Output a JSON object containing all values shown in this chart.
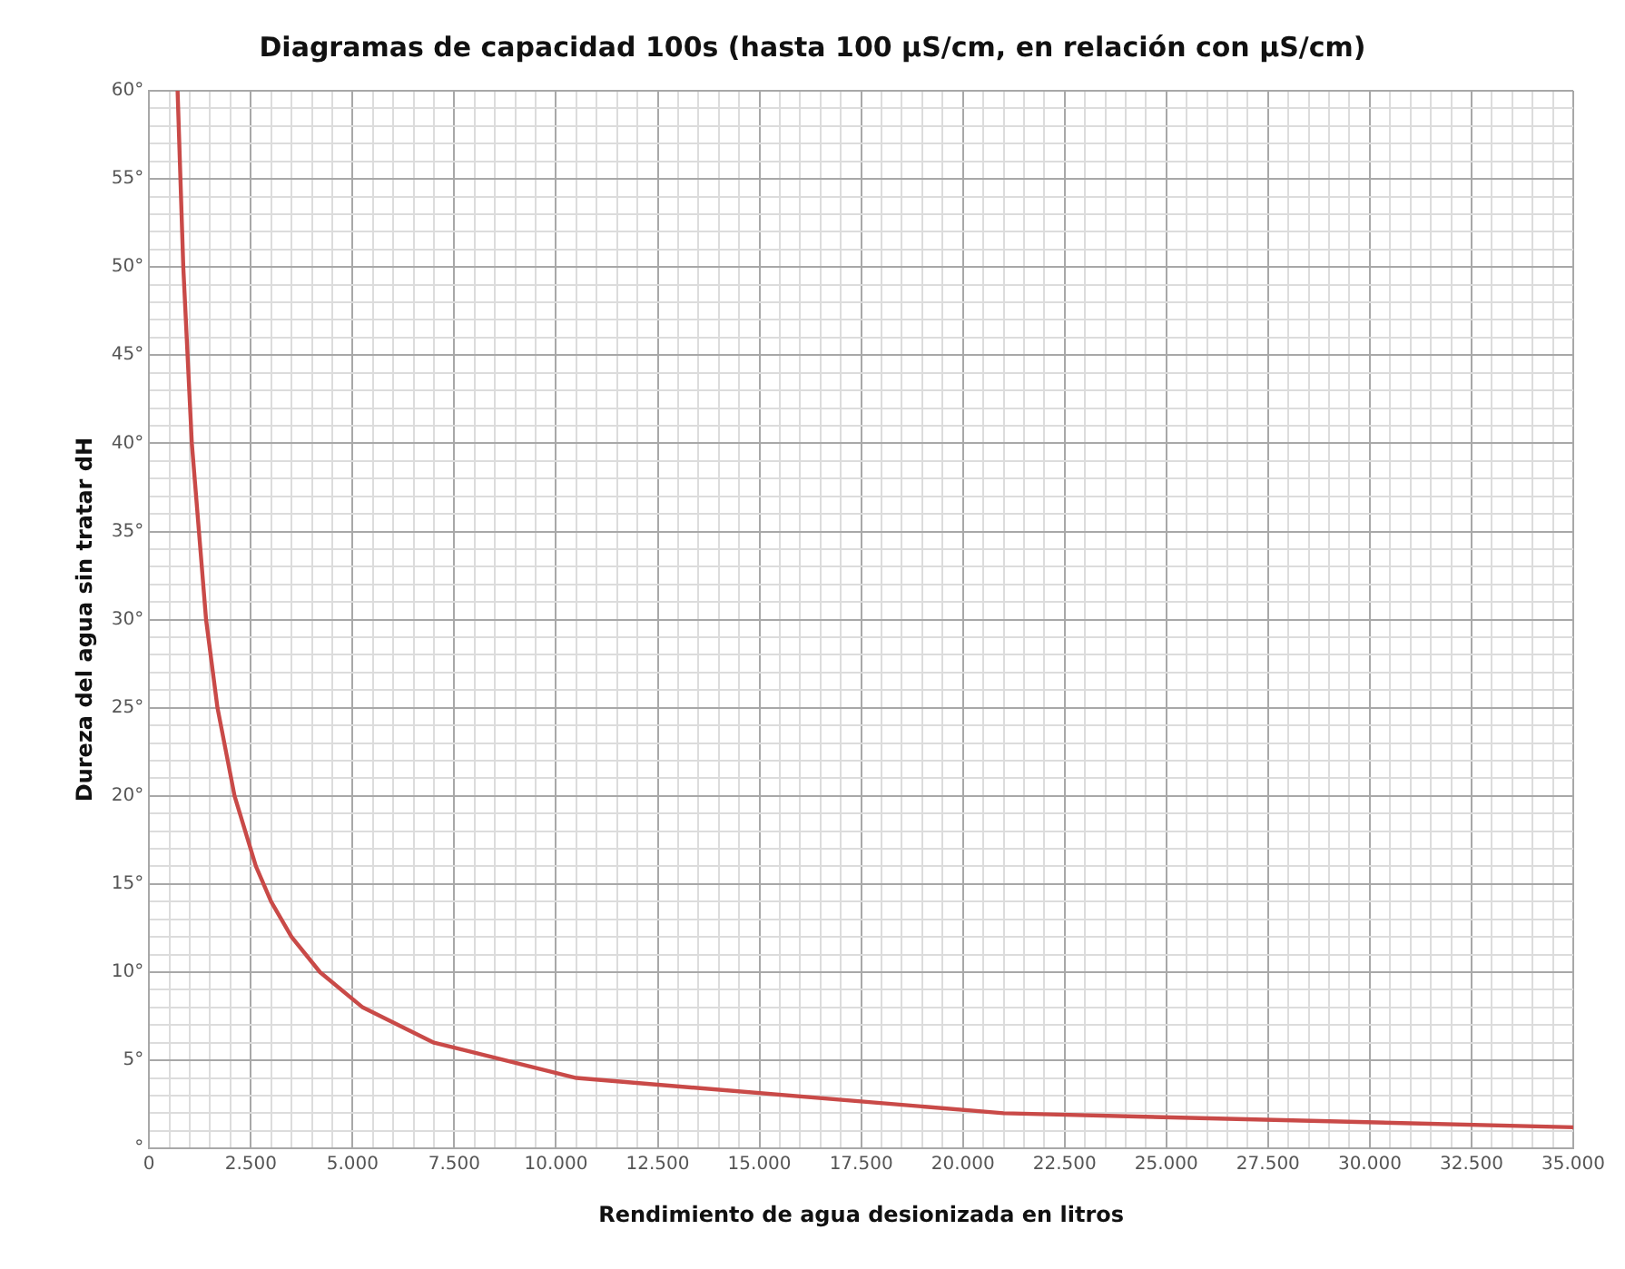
{
  "chart_data": {
    "type": "line",
    "title": "Diagramas de capacidad 100s (hasta 100 µS/cm, en relación con µS/cm)",
    "xlabel": "Rendimiento de agua desionizada en litros",
    "ylabel": "Dureza del agua sin tratar dH",
    "x": [
      700,
      840,
      1050,
      1400,
      1680,
      2100,
      2625,
      3000,
      3500,
      4200,
      5250,
      7000,
      10500,
      21000,
      35000
    ],
    "series": [
      {
        "color": "#c94a48",
        "values": [
          60,
          50,
          40,
          30,
          25,
          20,
          16,
          14,
          12,
          10,
          8,
          6,
          4,
          2,
          1.2
        ]
      }
    ],
    "xlim": [
      0,
      35000
    ],
    "xticks": [
      0,
      {
        "value": 500,
        "label": null
      },
      {
        "value": 1000,
        "label": null
      },
      {
        "value": 1500,
        "label": null
      },
      {
        "value": 2000,
        "label": null
      },
      {
        "value": 2500,
        "label": "2.500"
      },
      {
        "value": 3000,
        "label": null
      },
      {
        "value": 3500,
        "label": null
      },
      {
        "value": 4000,
        "label": null
      },
      {
        "value": 4500,
        "label": null
      },
      {
        "value": 5000,
        "label": "5.000"
      },
      {
        "value": 5500,
        "label": null
      },
      {
        "value": 6000,
        "label": null
      },
      {
        "value": 6500,
        "label": null
      },
      {
        "value": 7000,
        "label": null
      },
      {
        "value": 7500,
        "label": "7.500"
      },
      {
        "value": 8000,
        "label": null
      },
      {
        "value": 8500,
        "label": null
      },
      {
        "value": 9000,
        "label": null
      },
      {
        "value": 9500,
        "label": null
      },
      {
        "value": 10000,
        "label": "10.000"
      },
      {
        "value": 10500,
        "label": null
      },
      {
        "value": 11000,
        "label": null
      },
      {
        "value": 11500,
        "label": null
      },
      {
        "value": 12000,
        "label": null
      },
      {
        "value": 12500,
        "label": "12.500"
      },
      {
        "value": 13000,
        "label": null
      },
      {
        "value": 13500,
        "label": null
      },
      {
        "value": 14000,
        "label": null
      },
      {
        "value": 14500,
        "label": null
      },
      {
        "value": 15000,
        "label": "15.000"
      },
      {
        "value": 15500,
        "label": null
      },
      {
        "value": 16000,
        "label": null
      },
      {
        "value": 16500,
        "label": null
      },
      {
        "value": 17000,
        "label": null
      },
      {
        "value": 17500,
        "label": "17.500"
      },
      {
        "value": 18000,
        "label": null
      },
      {
        "value": 18500,
        "label": null
      },
      {
        "value": 19000,
        "label": null
      },
      {
        "value": 19500,
        "label": null
      },
      {
        "value": 20000,
        "label": "20.000"
      },
      {
        "value": 20500,
        "label": null
      },
      {
        "value": 21000,
        "label": null
      },
      {
        "value": 21500,
        "label": null
      },
      {
        "value": 22000,
        "label": null
      },
      {
        "value": 22500,
        "label": "22.500"
      },
      {
        "value": 23000,
        "label": null
      },
      {
        "value": 23500,
        "label": null
      },
      {
        "value": 24000,
        "label": null
      },
      {
        "value": 24500,
        "label": null
      },
      {
        "value": 25000,
        "label": "25.000"
      },
      {
        "value": 25500,
        "label": null
      },
      {
        "value": 26000,
        "label": null
      },
      {
        "value": 26500,
        "label": null
      },
      {
        "value": 27000,
        "label": null
      },
      {
        "value": 27500,
        "label": "27.500"
      },
      {
        "value": 28000,
        "label": null
      },
      {
        "value": 28500,
        "label": null
      },
      {
        "value": 29000,
        "label": null
      },
      {
        "value": 29500,
        "label": null
      },
      {
        "value": 30000,
        "label": "30.000"
      },
      {
        "value": 30500,
        "label": null
      },
      {
        "value": 31000,
        "label": null
      },
      {
        "value": 31500,
        "label": null
      },
      {
        "value": 32000,
        "label": null
      },
      {
        "value": 32500,
        "label": "32.500"
      },
      {
        "value": 33000,
        "label": null
      },
      {
        "value": 33500,
        "label": null
      },
      {
        "value": 34000,
        "label": null
      },
      {
        "value": 34500,
        "label": null
      },
      {
        "value": 35000,
        "label": "35.000"
      }
    ],
    "ylim": [
      0,
      60
    ],
    "yticks": [
      {
        "value": 0,
        "label": "°"
      },
      {
        "value": 1,
        "label": null
      },
      {
        "value": 2,
        "label": null
      },
      {
        "value": 3,
        "label": null
      },
      {
        "value": 4,
        "label": null
      },
      {
        "value": 5,
        "label": "5°"
      },
      {
        "value": 6,
        "label": null
      },
      {
        "value": 7,
        "label": null
      },
      {
        "value": 8,
        "label": null
      },
      {
        "value": 9,
        "label": null
      },
      {
        "value": 10,
        "label": "10°"
      },
      {
        "value": 11,
        "label": null
      },
      {
        "value": 12,
        "label": null
      },
      {
        "value": 13,
        "label": null
      },
      {
        "value": 14,
        "label": null
      },
      {
        "value": 15,
        "label": "15°"
      },
      {
        "value": 16,
        "label": null
      },
      {
        "value": 17,
        "label": null
      },
      {
        "value": 18,
        "label": null
      },
      {
        "value": 19,
        "label": null
      },
      {
        "value": 20,
        "label": "20°"
      },
      {
        "value": 21,
        "label": null
      },
      {
        "value": 22,
        "label": null
      },
      {
        "value": 23,
        "label": null
      },
      {
        "value": 24,
        "label": null
      },
      {
        "value": 25,
        "label": "25°"
      },
      {
        "value": 26,
        "label": null
      },
      {
        "value": 27,
        "label": null
      },
      {
        "value": 28,
        "label": null
      },
      {
        "value": 29,
        "label": null
      },
      {
        "value": 30,
        "label": "30°"
      },
      {
        "value": 31,
        "label": null
      },
      {
        "value": 32,
        "label": null
      },
      {
        "value": 33,
        "label": null
      },
      {
        "value": 34,
        "label": null
      },
      {
        "value": 35,
        "label": "35°"
      },
      {
        "value": 36,
        "label": null
      },
      {
        "value": 37,
        "label": null
      },
      {
        "value": 38,
        "label": null
      },
      {
        "value": 39,
        "label": null
      },
      {
        "value": 40,
        "label": "40°"
      },
      {
        "value": 41,
        "label": null
      },
      {
        "value": 42,
        "label": null
      },
      {
        "value": 43,
        "label": null
      },
      {
        "value": 44,
        "label": null
      },
      {
        "value": 45,
        "label": "45°"
      },
      {
        "value": 46,
        "label": null
      },
      {
        "value": 47,
        "label": null
      },
      {
        "value": 48,
        "label": null
      },
      {
        "value": 49,
        "label": null
      },
      {
        "value": 50,
        "label": "50°"
      },
      {
        "value": 51,
        "label": null
      },
      {
        "value": 52,
        "label": null
      },
      {
        "value": 53,
        "label": null
      },
      {
        "value": 54,
        "label": null
      },
      {
        "value": 55,
        "label": "55°"
      },
      {
        "value": 56,
        "label": null
      },
      {
        "value": 57,
        "label": null
      },
      {
        "value": 58,
        "label": null
      },
      {
        "value": 59,
        "label": null
      },
      {
        "value": 60,
        "label": "60°"
      }
    ],
    "grid": true,
    "legend": false
  }
}
